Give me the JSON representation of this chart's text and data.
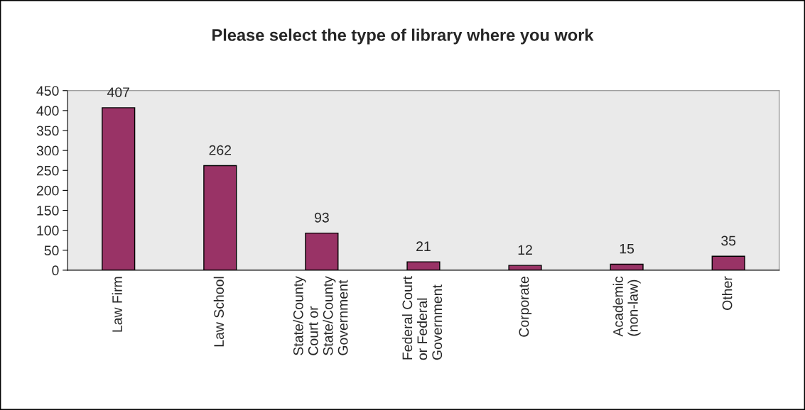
{
  "chart_data": {
    "type": "bar",
    "title": "Please select the type of library where you work",
    "categories": [
      "Law Firm",
      "Law School",
      "State/County\nCourt or\nState/County\nGovernment",
      "Federal Court\nor Federal\nGovernment",
      "Corporate",
      "Academic\n(non-law)",
      "Other"
    ],
    "values": [
      407,
      262,
      93,
      21,
      12,
      15,
      35
    ],
    "color": "#993366",
    "ylim": [
      0,
      450
    ],
    "yticks": [
      0,
      50,
      100,
      150,
      200,
      250,
      300,
      350,
      400,
      450
    ],
    "data_labels": true,
    "grid": false,
    "legend": false
  }
}
